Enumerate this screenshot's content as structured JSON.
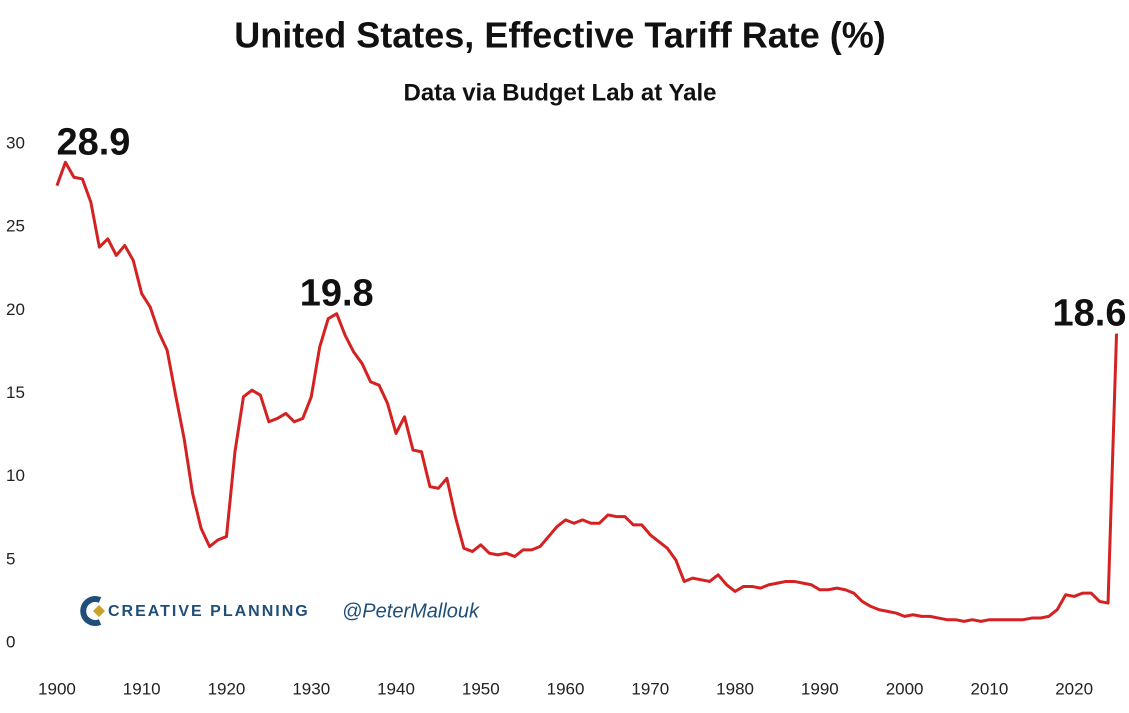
{
  "chart_data": {
    "type": "line",
    "title": "United States, Effective Tariff Rate (%)",
    "subtitle": "Data via Budget Lab at Yale",
    "x": [
      1900,
      1901,
      1902,
      1903,
      1904,
      1905,
      1906,
      1907,
      1908,
      1909,
      1910,
      1911,
      1912,
      1913,
      1914,
      1915,
      1916,
      1917,
      1918,
      1919,
      1920,
      1921,
      1922,
      1923,
      1924,
      1925,
      1926,
      1927,
      1928,
      1929,
      1930,
      1931,
      1932,
      1933,
      1934,
      1935,
      1936,
      1937,
      1938,
      1939,
      1940,
      1941,
      1942,
      1943,
      1944,
      1945,
      1946,
      1947,
      1948,
      1949,
      1950,
      1951,
      1952,
      1953,
      1954,
      1955,
      1956,
      1957,
      1958,
      1959,
      1960,
      1961,
      1962,
      1963,
      1964,
      1965,
      1966,
      1967,
      1968,
      1969,
      1970,
      1971,
      1972,
      1973,
      1974,
      1975,
      1976,
      1977,
      1978,
      1979,
      1980,
      1981,
      1982,
      1983,
      1984,
      1985,
      1986,
      1987,
      1988,
      1989,
      1990,
      1991,
      1992,
      1993,
      1994,
      1995,
      1996,
      1997,
      1998,
      1999,
      2000,
      2001,
      2002,
      2003,
      2004,
      2005,
      2006,
      2007,
      2008,
      2009,
      2010,
      2011,
      2012,
      2013,
      2014,
      2015,
      2016,
      2017,
      2018,
      2019,
      2020,
      2021,
      2022,
      2023,
      2024,
      2025
    ],
    "series": [
      {
        "name": "Effective Tariff Rate",
        "color": "#d42222",
        "values": [
          27.5,
          28.9,
          28.0,
          27.9,
          26.5,
          23.8,
          24.3,
          23.3,
          23.9,
          23.0,
          21.0,
          20.2,
          18.7,
          17.6,
          14.9,
          12.3,
          9.0,
          6.9,
          5.8,
          6.2,
          6.4,
          11.5,
          14.8,
          15.2,
          14.9,
          13.3,
          13.5,
          13.8,
          13.3,
          13.5,
          14.8,
          17.8,
          19.5,
          19.8,
          18.5,
          17.5,
          16.8,
          15.7,
          15.5,
          14.4,
          12.6,
          13.6,
          11.6,
          11.5,
          9.4,
          9.3,
          9.9,
          7.6,
          5.7,
          5.5,
          5.9,
          5.4,
          5.3,
          5.4,
          5.2,
          5.6,
          5.6,
          5.8,
          6.4,
          7.0,
          7.4,
          7.2,
          7.4,
          7.2,
          7.2,
          7.7,
          7.6,
          7.6,
          7.1,
          7.1,
          6.5,
          6.1,
          5.7,
          5.0,
          3.7,
          3.9,
          3.8,
          3.7,
          4.1,
          3.5,
          3.1,
          3.4,
          3.4,
          3.3,
          3.5,
          3.6,
          3.7,
          3.7,
          3.6,
          3.5,
          3.2,
          3.2,
          3.3,
          3.2,
          3.0,
          2.5,
          2.2,
          2.0,
          1.9,
          1.8,
          1.6,
          1.7,
          1.6,
          1.6,
          1.5,
          1.4,
          1.4,
          1.3,
          1.4,
          1.3,
          1.4,
          1.4,
          1.4,
          1.4,
          1.4,
          1.5,
          1.5,
          1.6,
          2.0,
          2.9,
          2.8,
          3.0,
          3.0,
          2.5,
          2.4,
          18.6
        ]
      }
    ],
    "annotations": [
      {
        "x": 1901,
        "y": 28.9,
        "label": "28.9"
      },
      {
        "x": 1933,
        "y": 19.8,
        "label": "19.8"
      },
      {
        "x": 2025,
        "y": 18.6,
        "label": "18.6"
      }
    ],
    "xlim": [
      1898,
      2026
    ],
    "xticks": [
      1900,
      1910,
      1920,
      1930,
      1940,
      1950,
      1960,
      1970,
      1980,
      1990,
      2000,
      2010,
      2020
    ],
    "ylim": [
      0,
      30
    ],
    "yticks": [
      0,
      5,
      10,
      15,
      20,
      25,
      30
    ],
    "grid": false,
    "watermark": {
      "brand": "CREATIVE PLANNING",
      "handle": "@PeterMallouk"
    }
  }
}
